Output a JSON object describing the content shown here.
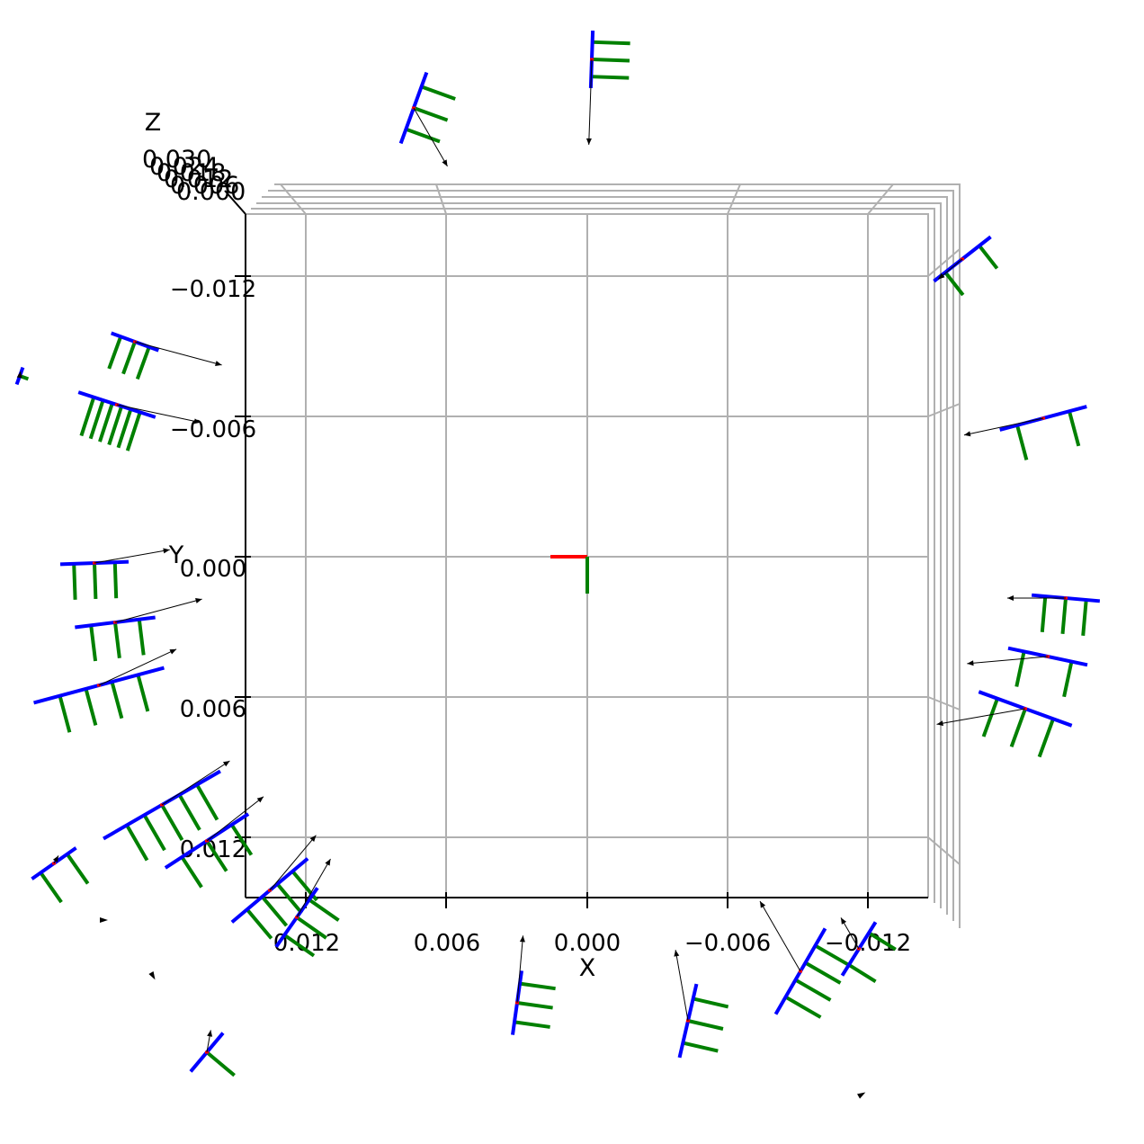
{
  "chart_data": {
    "type": "3d-scatter",
    "projection": "top-down view of 3D axes",
    "xlabel": "X",
    "ylabel": "Y",
    "zlabel": "Z",
    "x_ticks": [
      "0.012",
      "0.006",
      "0.000",
      "−0.006",
      "−0.012"
    ],
    "x_tick_values": [
      0.012,
      0.006,
      0.0,
      -0.006,
      -0.012
    ],
    "y_ticks": [
      "−0.012",
      "−0.006",
      "0.000",
      "0.006",
      "0.012"
    ],
    "y_tick_values": [
      -0.012,
      -0.006,
      0.0,
      0.006,
      0.012
    ],
    "z_ticks": [
      "0.030",
      "0.024",
      "0.018",
      "0.012",
      "0.006",
      "0.000"
    ],
    "z_tick_values": [
      0.03,
      0.024,
      0.018,
      0.012,
      0.006,
      0.0
    ],
    "xlim": [
      0.0146,
      -0.0146
    ],
    "ylim": [
      -0.0146,
      0.0146
    ],
    "grid": true,
    "colors": {
      "grid": "#b0b0b0",
      "axis": "#000000",
      "frame_x": "#ff0000",
      "frame_y": "#008000",
      "camera_axis": "#0000ff",
      "camera_tines": "#008000",
      "arrows": "#000000"
    }
  }
}
